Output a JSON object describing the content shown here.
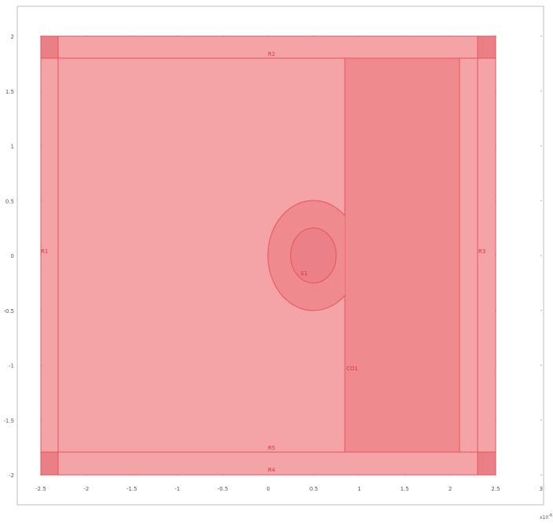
{
  "geometry": {
    "x_ticks": [
      "-2.5",
      "-2",
      "-1.5",
      "-1",
      "-0.5",
      "0",
      "0.5",
      "1",
      "1.5",
      "2",
      "2.5",
      "3"
    ],
    "y_ticks": [
      "2",
      "1.5",
      "1",
      "0.5",
      "0",
      "-0.5",
      "-1",
      "-1.5",
      "-2"
    ],
    "x_multiplier": "x10",
    "x_multiplier_exp": "-6",
    "labels": {
      "r1": "R1",
      "r2": "R2",
      "r3": "R3",
      "r4": "R4",
      "r5": "R5",
      "e1": "E1",
      "co1": "CO1"
    },
    "colors": {
      "background": "#ffffff",
      "domain_fill": "#f4a3a6",
      "domain_dark_fill": "#ef8a8f",
      "corner_fill": "#ea7f86",
      "edge": "#e8535c",
      "label": "#e0333f",
      "grid_dot": "#d9a5a8",
      "axis": "#9e9e9e"
    }
  }
}
